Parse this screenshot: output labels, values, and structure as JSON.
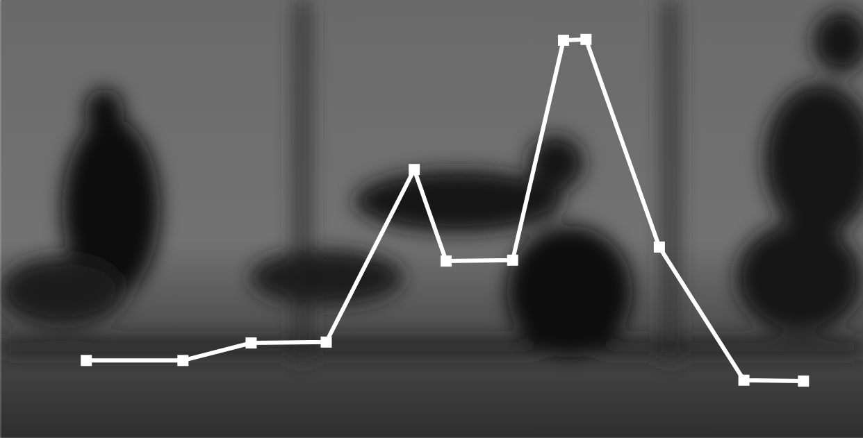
{
  "chart_data": {
    "type": "line",
    "x": [
      10.0,
      21.2,
      29.1,
      37.8,
      48.0,
      51.7,
      59.4,
      65.3,
      67.9,
      76.4,
      86.2,
      93.1
    ],
    "values": [
      17.7,
      17.7,
      21.7,
      21.9,
      61.3,
      40.4,
      40.6,
      90.8,
      91.0,
      43.6,
      13.2,
      13.0
    ],
    "xlim": [
      0,
      100
    ],
    "xticks": [
      0,
      100
    ],
    "ylim": [
      0,
      100
    ],
    "yticks": [
      0,
      100
    ],
    "tick_labels": false,
    "grid": false,
    "color": "#ffffff",
    "marker": "square",
    "line_style": "solid"
  }
}
